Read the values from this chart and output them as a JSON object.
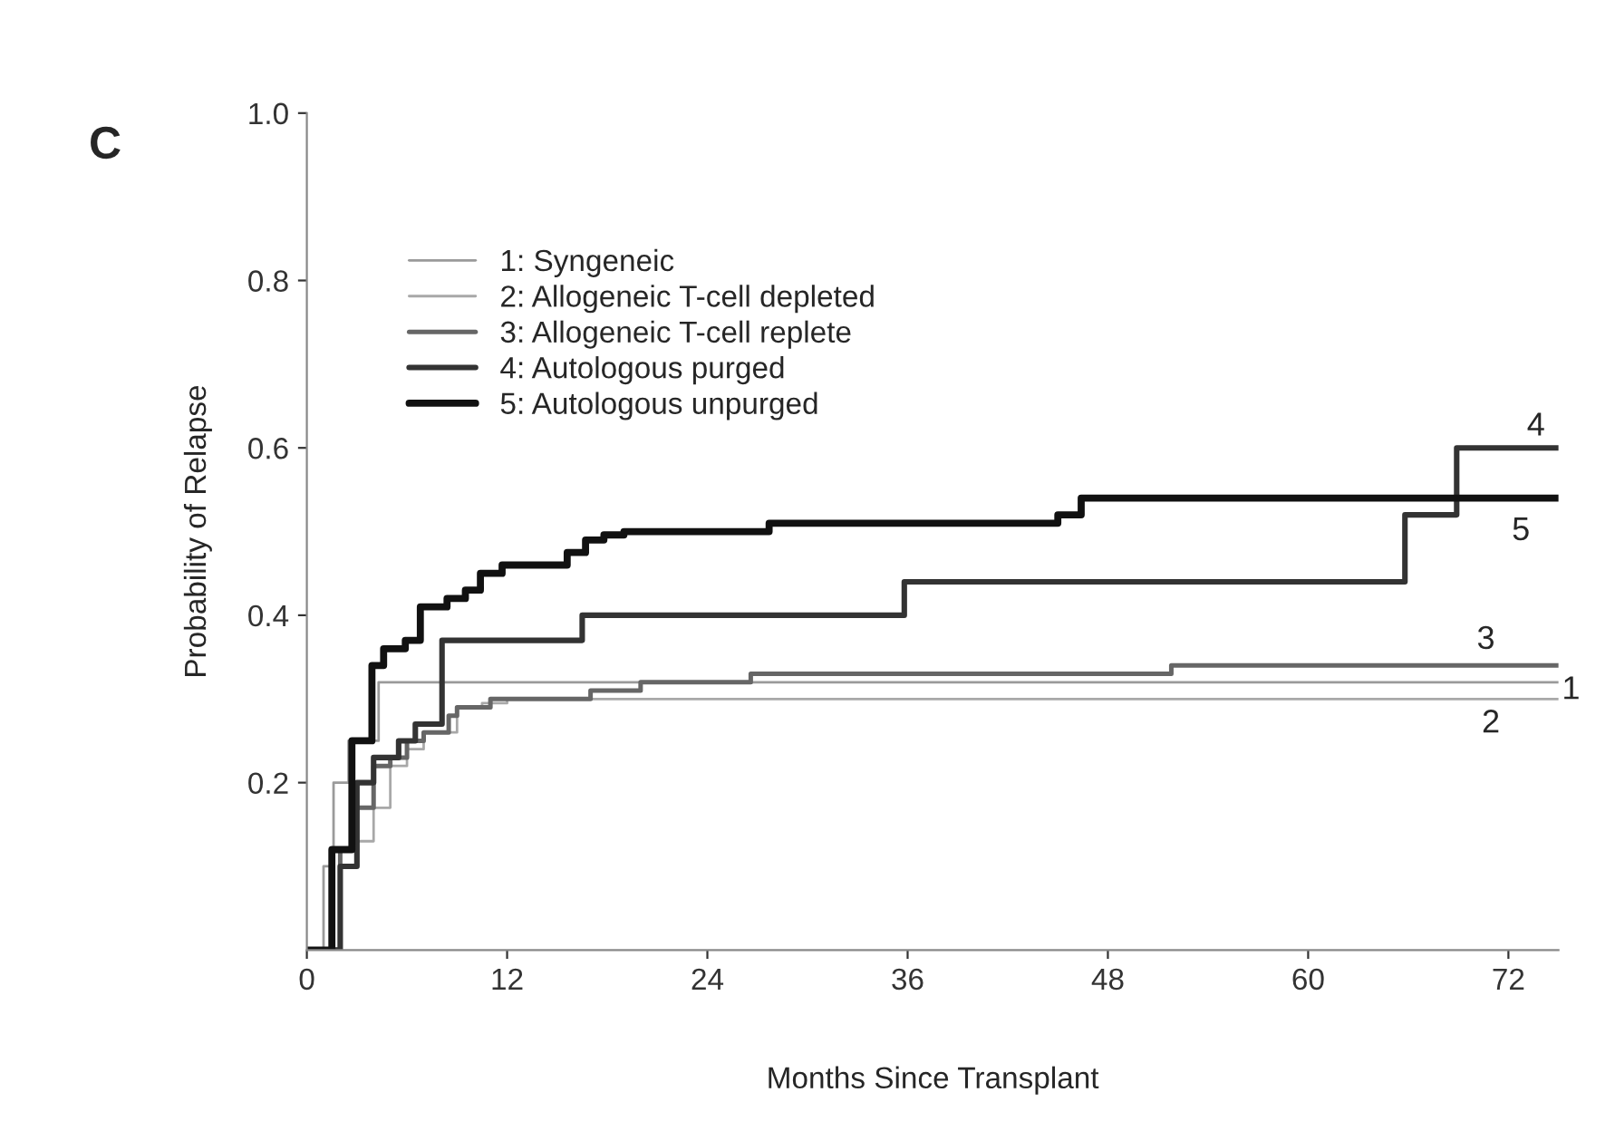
{
  "chart_data": {
    "type": "step",
    "title": "C",
    "xlabel": "Months Since Transplant",
    "ylabel": "Probability of Relapse",
    "xlim": [
      0,
      75
    ],
    "ylim": [
      0,
      1.0
    ],
    "xticks": [
      0,
      12,
      24,
      36,
      48,
      60,
      72
    ],
    "yticks": [
      0.2,
      0.4,
      0.6,
      0.8,
      {
        "value": 1.0,
        "label": "1.0"
      }
    ],
    "legend": "top left",
    "grid": false,
    "series": [
      {
        "name": "1: Syngeneic",
        "color": "#9a9a9a",
        "x": [
          0,
          1,
          1.6,
          2.5,
          4.3,
          75
        ],
        "values": [
          0,
          0.1,
          0.2,
          0.25,
          0.32,
          0.32
        ]
      },
      {
        "name": "2: Allogeneic T-cell depleted",
        "color": "#a8a8a8",
        "x": [
          0,
          2,
          3,
          4,
          5,
          6,
          7,
          9,
          10.5,
          12,
          75
        ],
        "values": [
          0,
          0.1,
          0.13,
          0.17,
          0.22,
          0.24,
          0.26,
          0.29,
          0.295,
          0.3,
          0.3
        ]
      },
      {
        "name": "3: Allogeneic T-cell replete",
        "color": "#666666",
        "x": [
          0,
          2,
          3,
          4,
          5,
          6,
          7,
          8.5,
          9,
          11,
          17,
          20,
          26.6,
          51.8,
          75
        ],
        "values": [
          0,
          0.12,
          0.17,
          0.22,
          0.23,
          0.25,
          0.26,
          0.28,
          0.29,
          0.3,
          0.31,
          0.32,
          0.33,
          0.34,
          0.34
        ]
      },
      {
        "name": "4: Autologous purged",
        "color": "#333333",
        "x": [
          0,
          2,
          3,
          4,
          5.5,
          6.5,
          8.1,
          16.5,
          35.8,
          65.8,
          68.9,
          75
        ],
        "values": [
          0,
          0.1,
          0.2,
          0.23,
          0.25,
          0.27,
          0.37,
          0.4,
          0.44,
          0.52,
          0.6,
          0.6
        ]
      },
      {
        "name": "5: Autologous unpurged",
        "color": "#111111",
        "x": [
          0,
          1.5,
          2.7,
          3.9,
          4.6,
          5.9,
          6.8,
          8.4,
          9.5,
          10.4,
          11.7,
          15.6,
          16.7,
          17.8,
          19.0,
          27.7,
          45.0,
          46.4,
          75
        ],
        "values": [
          0,
          0.12,
          0.25,
          0.34,
          0.36,
          0.37,
          0.41,
          0.42,
          0.43,
          0.45,
          0.46,
          0.475,
          0.49,
          0.496,
          0.5,
          0.51,
          0.52,
          0.54,
          0.54
        ]
      }
    ],
    "annotations": [
      "4",
      "5",
      "3",
      "1",
      "2"
    ]
  }
}
